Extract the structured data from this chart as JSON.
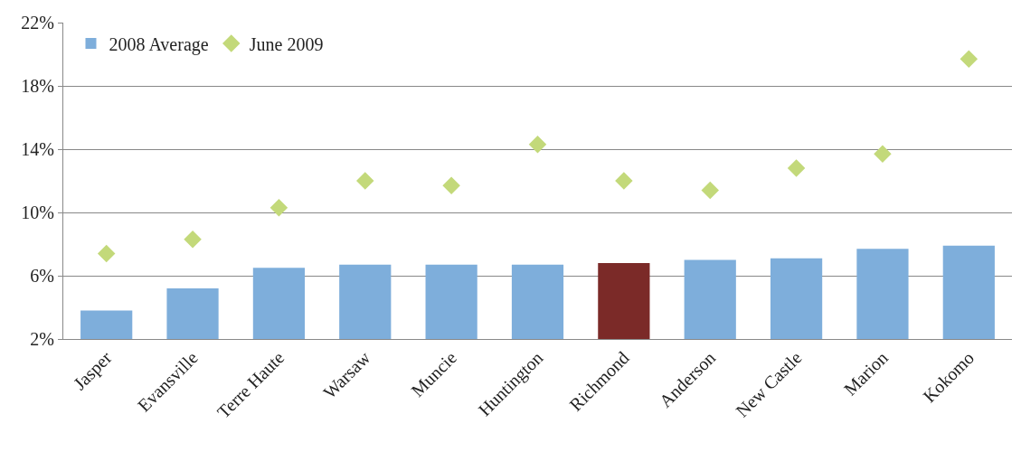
{
  "chart_data": {
    "type": "bar",
    "categories": [
      "Jasper",
      "Evansville",
      "Terre Haute",
      "Warsaw",
      "Muncie",
      "Huntington",
      "Richmond",
      "Anderson",
      "New Castle",
      "Marion",
      "Kokomo"
    ],
    "series": [
      {
        "name": "2008 Average",
        "colors": [
          "#7eaedb",
          "#7eaedb",
          "#7eaedb",
          "#7eaedb",
          "#7eaedb",
          "#7eaedb",
          "#7b2a28",
          "#7eaedb",
          "#7eaedb",
          "#7eaedb",
          "#7eaedb"
        ],
        "values": [
          3.8,
          5.2,
          6.5,
          6.7,
          6.7,
          6.7,
          6.8,
          7.0,
          7.1,
          7.7,
          7.9
        ]
      },
      {
        "name": "June 2009",
        "type": "scatter",
        "color": "#c3d97a",
        "marker": "diamond",
        "values": [
          7.4,
          8.3,
          10.3,
          12.0,
          11.7,
          14.3,
          12.0,
          11.4,
          12.8,
          13.7,
          19.7
        ]
      }
    ],
    "ylim": [
      2,
      22
    ],
    "yticks": [
      {
        "value": 2,
        "label": "2%"
      },
      {
        "value": 6,
        "label": "6%"
      },
      {
        "value": 10,
        "label": "10%"
      },
      {
        "value": 14,
        "label": "14%"
      },
      {
        "value": 18,
        "label": "18%"
      },
      {
        "value": 22,
        "label": "22%"
      }
    ],
    "grid": "y",
    "legend": "top left"
  }
}
